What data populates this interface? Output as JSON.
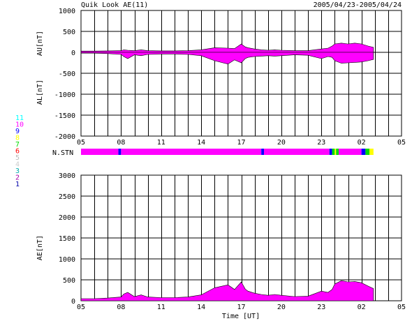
{
  "header": {
    "title": "Quik Look AE(11)",
    "date_range": "2005/04/23-2005/04/24"
  },
  "colors": {
    "grid": "#000000",
    "magenta": "#ff00ff",
    "blue": "#0000ff",
    "green": "#00dd00",
    "yellow": "#ffff00",
    "cyan": "#00ffff",
    "darkblue": "#0000aa"
  },
  "legend": [
    {
      "label": "11",
      "color": "#00ffff"
    },
    {
      "label": "10",
      "color": "#ff00ff"
    },
    {
      "label": "9",
      "color": "#0000ff"
    },
    {
      "label": "8",
      "color": "#ffff00"
    },
    {
      "label": "7",
      "color": "#00dd00"
    },
    {
      "label": "6",
      "color": "#ff0000"
    },
    {
      "label": "5",
      "color": "#bbbbbb"
    },
    {
      "label": "4",
      "color": "#cccccc"
    },
    {
      "label": "3",
      "color": "#00aaaa"
    },
    {
      "label": "2",
      "color": "#aa00aa"
    },
    {
      "label": "1",
      "color": "#0000aa"
    }
  ],
  "time_ticks": [
    "05",
    "08",
    "11",
    "14",
    "17",
    "20",
    "23",
    "02",
    "05"
  ],
  "chart_data": [
    {
      "type": "area",
      "name": "AU/AL",
      "ylabel_top": "AU[nT]",
      "ylabel_bottom": "AL[nT]",
      "ylim": [
        -2000,
        1000
      ],
      "yticks": [
        "1000",
        "500",
        "0",
        "-500",
        "-1000",
        "-1500",
        "-2000"
      ],
      "x_hours_since_05UT": [
        0,
        1,
        2,
        3,
        3.2,
        3.5,
        4,
        4.5,
        5,
        6,
        7,
        8,
        9,
        10,
        11,
        11.5,
        12,
        12.3,
        12.5,
        13,
        13.5,
        14,
        14.5,
        15,
        16,
        17,
        18,
        18.5,
        18.8,
        19,
        19.5,
        20,
        20.5,
        21,
        21.5,
        21.9
      ],
      "au": [
        30,
        30,
        35,
        40,
        60,
        50,
        40,
        60,
        40,
        35,
        35,
        40,
        60,
        110,
        100,
        90,
        200,
        130,
        110,
        80,
        60,
        50,
        60,
        50,
        40,
        40,
        80,
        100,
        150,
        200,
        220,
        200,
        220,
        200,
        150,
        120
      ],
      "al": [
        -20,
        -20,
        -30,
        -50,
        -100,
        -150,
        -60,
        -80,
        -50,
        -40,
        -40,
        -50,
        -80,
        -200,
        -280,
        -180,
        -250,
        -150,
        -120,
        -100,
        -90,
        -80,
        -90,
        -80,
        -60,
        -70,
        -150,
        -100,
        -120,
        -200,
        -260,
        -250,
        -240,
        -230,
        -200,
        -170
      ]
    },
    {
      "type": "area",
      "name": "AE",
      "ylabel": "AE[nT]",
      "ylim": [
        0,
        3000
      ],
      "yticks": [
        "3000",
        "2500",
        "2000",
        "1500",
        "1000",
        "500",
        "0"
      ],
      "xlabel": "Time [UT]",
      "x_hours_since_05UT": [
        0,
        1,
        2,
        3,
        3.2,
        3.5,
        4,
        4.5,
        5,
        6,
        7,
        8,
        9,
        10,
        11,
        11.5,
        12,
        12.3,
        12.5,
        13,
        13.5,
        14,
        14.5,
        15,
        16,
        17,
        18,
        18.5,
        18.8,
        19,
        19.5,
        20,
        20.5,
        21,
        21.5,
        21.9
      ],
      "ae": [
        50,
        50,
        65,
        90,
        160,
        200,
        100,
        140,
        90,
        75,
        75,
        90,
        140,
        310,
        380,
        270,
        450,
        280,
        230,
        180,
        150,
        130,
        150,
        130,
        100,
        110,
        230,
        200,
        270,
        400,
        480,
        450,
        460,
        430,
        350,
        290
      ]
    }
  ],
  "station_bar": {
    "label": "N.STN",
    "segments": [
      {
        "from": 0,
        "to": 2.8,
        "color": "#ff00ff"
      },
      {
        "from": 2.8,
        "to": 3.0,
        "color": "#0000ff"
      },
      {
        "from": 3.0,
        "to": 13.5,
        "color": "#ff00ff"
      },
      {
        "from": 13.5,
        "to": 13.7,
        "color": "#0000ff"
      },
      {
        "from": 13.7,
        "to": 18.6,
        "color": "#ff00ff"
      },
      {
        "from": 18.6,
        "to": 18.8,
        "color": "#0000ff"
      },
      {
        "from": 18.8,
        "to": 19.0,
        "color": "#00dd00"
      },
      {
        "from": 19.0,
        "to": 19.1,
        "color": "#ffff00"
      },
      {
        "from": 19.1,
        "to": 19.3,
        "color": "#00dd00"
      },
      {
        "from": 19.3,
        "to": 21.0,
        "color": "#ff00ff"
      },
      {
        "from": 21.0,
        "to": 21.3,
        "color": "#0000ff"
      },
      {
        "from": 21.3,
        "to": 21.6,
        "color": "#00dd00"
      },
      {
        "from": 21.6,
        "to": 21.9,
        "color": "#ffff00"
      }
    ],
    "xlim_hours": [
      0,
      24
    ]
  }
}
